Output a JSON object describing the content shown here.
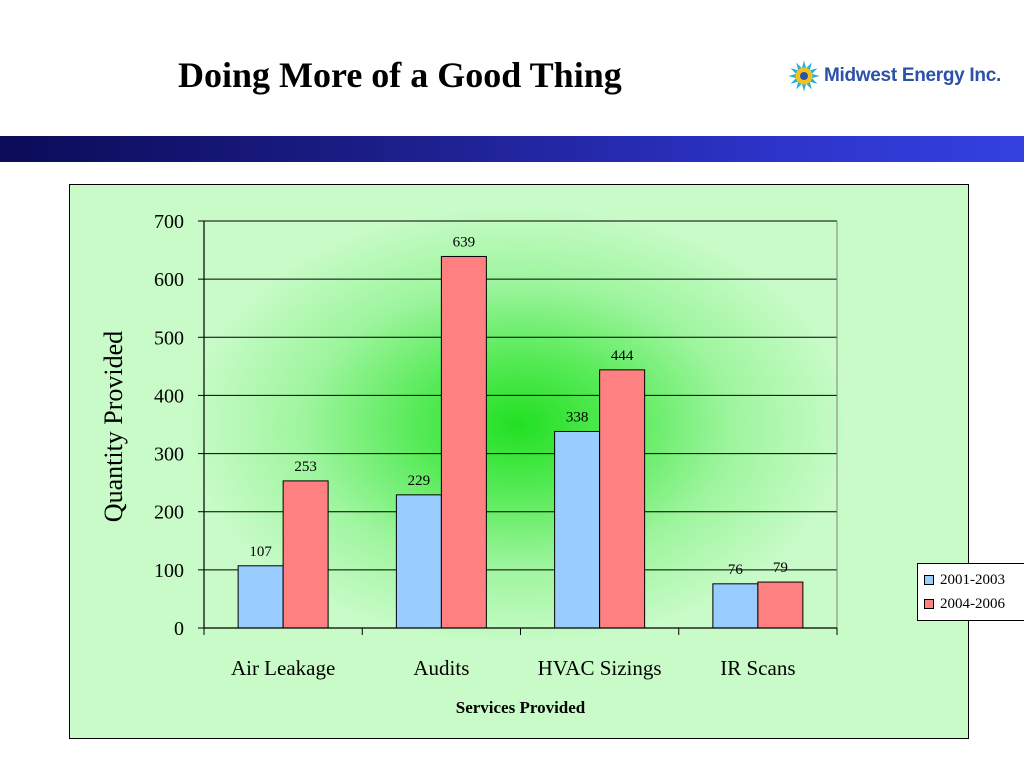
{
  "slide": {
    "title": "Doing More of a Good Thing",
    "logo_text": "Midwest Energy Inc."
  },
  "colors": {
    "series_2001_2003": "#99ccff",
    "series_2004_2006": "#ff8080",
    "header_band": "#1d1f8c",
    "logo_blue": "#2b52a8"
  },
  "icons": {
    "logo": "sunburst-logo-icon"
  },
  "chart_data": {
    "type": "bar",
    "title": "",
    "xlabel": "Services Provided",
    "ylabel": "Quantity Provided",
    "categories": [
      "Air Leakage",
      "Audits",
      "HVAC Sizings",
      "IR Scans"
    ],
    "series": [
      {
        "name": "2001-2003",
        "values": [
          107,
          229,
          338,
          76
        ]
      },
      {
        "name": "2004-2006",
        "values": [
          253,
          639,
          444,
          79
        ]
      }
    ],
    "ylim": [
      0,
      700
    ],
    "yticks": [
      0,
      100,
      200,
      300,
      400,
      500,
      600,
      700
    ],
    "grid": true,
    "legend_position": "right",
    "data_labels": true
  }
}
